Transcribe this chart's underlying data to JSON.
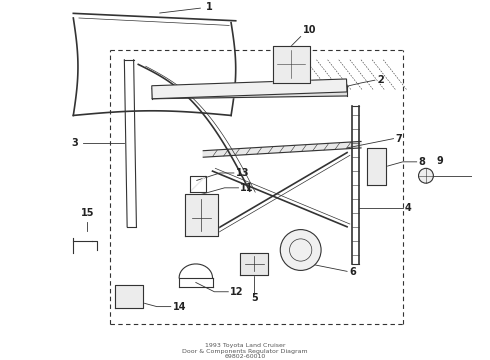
{
  "title": "1993 Toyota Land Cruiser\nDoor & Components Regulator Diagram\n69802-60010",
  "bg_color": "#ffffff",
  "line_color": "#333333",
  "label_color": "#222222",
  "fig_width": 4.9,
  "fig_height": 3.6,
  "dpi": 100
}
